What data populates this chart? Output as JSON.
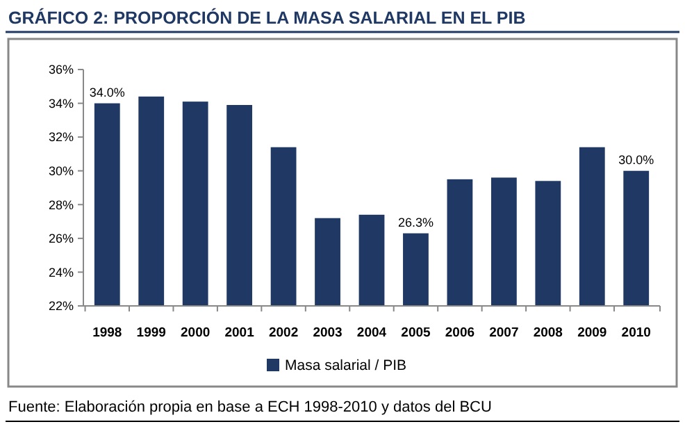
{
  "chart_data": {
    "type": "bar",
    "title": "GRÁFICO 2: PROPORCIÓN DE LA MASA SALARIAL EN EL PIB",
    "categories": [
      "1998",
      "1999",
      "2000",
      "2001",
      "2002",
      "2003",
      "2004",
      "2005",
      "2006",
      "2007",
      "2008",
      "2009",
      "2010"
    ],
    "series": [
      {
        "name": "Masa salarial / PIB",
        "color": "#1f3864",
        "values": [
          34.0,
          34.4,
          34.1,
          33.9,
          31.4,
          27.2,
          27.4,
          26.3,
          29.5,
          29.6,
          29.4,
          31.4,
          30.0
        ],
        "value_labels": [
          "34.0%",
          null,
          null,
          null,
          null,
          null,
          null,
          "26.3%",
          null,
          null,
          null,
          null,
          "30.0%"
        ]
      }
    ],
    "ylim": [
      22,
      36
    ],
    "yticks": [
      {
        "value": 22,
        "label": "22%"
      },
      {
        "value": 24,
        "label": "24%"
      },
      {
        "value": 26,
        "label": "26%"
      },
      {
        "value": 28,
        "label": "28%"
      },
      {
        "value": 30,
        "label": "30%"
      },
      {
        "value": 32,
        "label": "32%"
      },
      {
        "value": 34,
        "label": "34%"
      },
      {
        "value": 36,
        "label": "36%"
      }
    ],
    "grid": false,
    "legend": "bottom",
    "annotations": [
      "Fuente: Elaboración propia en base a ECH 1998-2010 y datos del BCU"
    ]
  }
}
